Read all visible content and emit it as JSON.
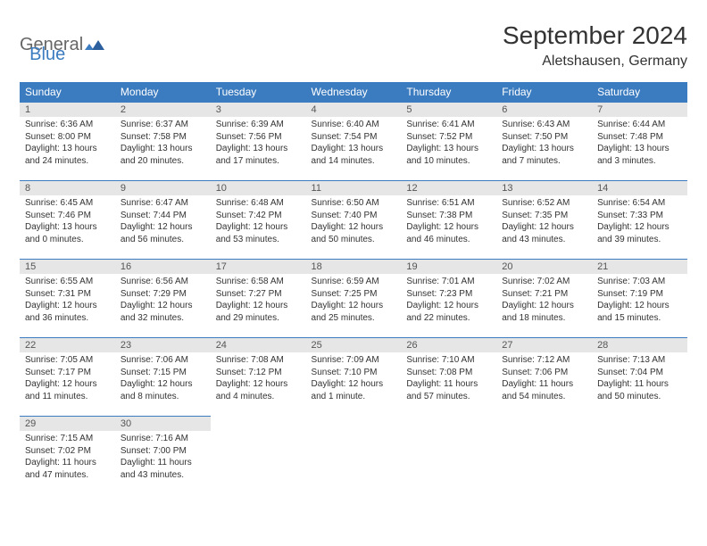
{
  "logo": {
    "part1": "General",
    "part2": "Blue"
  },
  "title": "September 2024",
  "location": "Aletshausen, Germany",
  "colors": {
    "header_bg": "#3b7bbf",
    "header_text": "#ffffff",
    "daynum_bg": "#e6e6e6",
    "border": "#3b7bbf",
    "text": "#333333"
  },
  "weekdays": [
    "Sunday",
    "Monday",
    "Tuesday",
    "Wednesday",
    "Thursday",
    "Friday",
    "Saturday"
  ],
  "weeks": [
    [
      {
        "n": "1",
        "sr": "Sunrise: 6:36 AM",
        "ss": "Sunset: 8:00 PM",
        "d1": "Daylight: 13 hours",
        "d2": "and 24 minutes."
      },
      {
        "n": "2",
        "sr": "Sunrise: 6:37 AM",
        "ss": "Sunset: 7:58 PM",
        "d1": "Daylight: 13 hours",
        "d2": "and 20 minutes."
      },
      {
        "n": "3",
        "sr": "Sunrise: 6:39 AM",
        "ss": "Sunset: 7:56 PM",
        "d1": "Daylight: 13 hours",
        "d2": "and 17 minutes."
      },
      {
        "n": "4",
        "sr": "Sunrise: 6:40 AM",
        "ss": "Sunset: 7:54 PM",
        "d1": "Daylight: 13 hours",
        "d2": "and 14 minutes."
      },
      {
        "n": "5",
        "sr": "Sunrise: 6:41 AM",
        "ss": "Sunset: 7:52 PM",
        "d1": "Daylight: 13 hours",
        "d2": "and 10 minutes."
      },
      {
        "n": "6",
        "sr": "Sunrise: 6:43 AM",
        "ss": "Sunset: 7:50 PM",
        "d1": "Daylight: 13 hours",
        "d2": "and 7 minutes."
      },
      {
        "n": "7",
        "sr": "Sunrise: 6:44 AM",
        "ss": "Sunset: 7:48 PM",
        "d1": "Daylight: 13 hours",
        "d2": "and 3 minutes."
      }
    ],
    [
      {
        "n": "8",
        "sr": "Sunrise: 6:45 AM",
        "ss": "Sunset: 7:46 PM",
        "d1": "Daylight: 13 hours",
        "d2": "and 0 minutes."
      },
      {
        "n": "9",
        "sr": "Sunrise: 6:47 AM",
        "ss": "Sunset: 7:44 PM",
        "d1": "Daylight: 12 hours",
        "d2": "and 56 minutes."
      },
      {
        "n": "10",
        "sr": "Sunrise: 6:48 AM",
        "ss": "Sunset: 7:42 PM",
        "d1": "Daylight: 12 hours",
        "d2": "and 53 minutes."
      },
      {
        "n": "11",
        "sr": "Sunrise: 6:50 AM",
        "ss": "Sunset: 7:40 PM",
        "d1": "Daylight: 12 hours",
        "d2": "and 50 minutes."
      },
      {
        "n": "12",
        "sr": "Sunrise: 6:51 AM",
        "ss": "Sunset: 7:38 PM",
        "d1": "Daylight: 12 hours",
        "d2": "and 46 minutes."
      },
      {
        "n": "13",
        "sr": "Sunrise: 6:52 AM",
        "ss": "Sunset: 7:35 PM",
        "d1": "Daylight: 12 hours",
        "d2": "and 43 minutes."
      },
      {
        "n": "14",
        "sr": "Sunrise: 6:54 AM",
        "ss": "Sunset: 7:33 PM",
        "d1": "Daylight: 12 hours",
        "d2": "and 39 minutes."
      }
    ],
    [
      {
        "n": "15",
        "sr": "Sunrise: 6:55 AM",
        "ss": "Sunset: 7:31 PM",
        "d1": "Daylight: 12 hours",
        "d2": "and 36 minutes."
      },
      {
        "n": "16",
        "sr": "Sunrise: 6:56 AM",
        "ss": "Sunset: 7:29 PM",
        "d1": "Daylight: 12 hours",
        "d2": "and 32 minutes."
      },
      {
        "n": "17",
        "sr": "Sunrise: 6:58 AM",
        "ss": "Sunset: 7:27 PM",
        "d1": "Daylight: 12 hours",
        "d2": "and 29 minutes."
      },
      {
        "n": "18",
        "sr": "Sunrise: 6:59 AM",
        "ss": "Sunset: 7:25 PM",
        "d1": "Daylight: 12 hours",
        "d2": "and 25 minutes."
      },
      {
        "n": "19",
        "sr": "Sunrise: 7:01 AM",
        "ss": "Sunset: 7:23 PM",
        "d1": "Daylight: 12 hours",
        "d2": "and 22 minutes."
      },
      {
        "n": "20",
        "sr": "Sunrise: 7:02 AM",
        "ss": "Sunset: 7:21 PM",
        "d1": "Daylight: 12 hours",
        "d2": "and 18 minutes."
      },
      {
        "n": "21",
        "sr": "Sunrise: 7:03 AM",
        "ss": "Sunset: 7:19 PM",
        "d1": "Daylight: 12 hours",
        "d2": "and 15 minutes."
      }
    ],
    [
      {
        "n": "22",
        "sr": "Sunrise: 7:05 AM",
        "ss": "Sunset: 7:17 PM",
        "d1": "Daylight: 12 hours",
        "d2": "and 11 minutes."
      },
      {
        "n": "23",
        "sr": "Sunrise: 7:06 AM",
        "ss": "Sunset: 7:15 PM",
        "d1": "Daylight: 12 hours",
        "d2": "and 8 minutes."
      },
      {
        "n": "24",
        "sr": "Sunrise: 7:08 AM",
        "ss": "Sunset: 7:12 PM",
        "d1": "Daylight: 12 hours",
        "d2": "and 4 minutes."
      },
      {
        "n": "25",
        "sr": "Sunrise: 7:09 AM",
        "ss": "Sunset: 7:10 PM",
        "d1": "Daylight: 12 hours",
        "d2": "and 1 minute."
      },
      {
        "n": "26",
        "sr": "Sunrise: 7:10 AM",
        "ss": "Sunset: 7:08 PM",
        "d1": "Daylight: 11 hours",
        "d2": "and 57 minutes."
      },
      {
        "n": "27",
        "sr": "Sunrise: 7:12 AM",
        "ss": "Sunset: 7:06 PM",
        "d1": "Daylight: 11 hours",
        "d2": "and 54 minutes."
      },
      {
        "n": "28",
        "sr": "Sunrise: 7:13 AM",
        "ss": "Sunset: 7:04 PM",
        "d1": "Daylight: 11 hours",
        "d2": "and 50 minutes."
      }
    ],
    [
      {
        "n": "29",
        "sr": "Sunrise: 7:15 AM",
        "ss": "Sunset: 7:02 PM",
        "d1": "Daylight: 11 hours",
        "d2": "and 47 minutes."
      },
      {
        "n": "30",
        "sr": "Sunrise: 7:16 AM",
        "ss": "Sunset: 7:00 PM",
        "d1": "Daylight: 11 hours",
        "d2": "and 43 minutes."
      },
      null,
      null,
      null,
      null,
      null
    ]
  ]
}
